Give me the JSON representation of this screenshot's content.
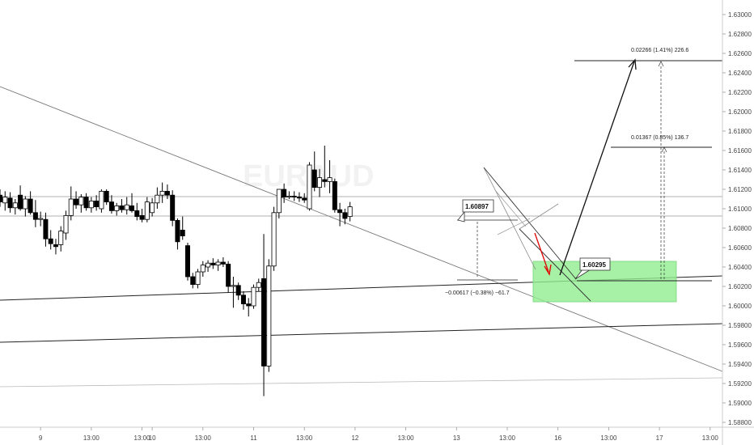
{
  "chart_data": {
    "type": "candlestick",
    "title": "",
    "watermark": "EURAUD",
    "ylim": [
      1.5875,
      1.6315
    ],
    "y_ticks": [
      "1.63000",
      "1.62800",
      "1.62600",
      "1.62400",
      "1.62200",
      "1.62000",
      "1.61800",
      "1.61600",
      "1.61400",
      "1.61200",
      "1.61000",
      "1.60800",
      "1.60600",
      "1.60400",
      "1.60200",
      "1.60000",
      "1.59800",
      "1.59600",
      "1.59400",
      "1.59200",
      "1.59000",
      "1.58800"
    ],
    "x_ticks": [
      "9",
      "13:00",
      "13:00",
      "10",
      "13:00",
      "11",
      "13:00",
      "12",
      "13:00",
      "13",
      "13:00",
      "16",
      "13:00",
      "17",
      "13:00"
    ],
    "x_tick_index": [
      8,
      18,
      28,
      30,
      40,
      50,
      60,
      70,
      80,
      90,
      100,
      110,
      120,
      130,
      140
    ],
    "candles": [
      {
        "o": 1.6114,
        "h": 1.612,
        "l": 1.6102,
        "c": 1.6107
      },
      {
        "o": 1.6106,
        "h": 1.6118,
        "l": 1.6098,
        "c": 1.6112
      },
      {
        "o": 1.6111,
        "h": 1.6117,
        "l": 1.6096,
        "c": 1.6101
      },
      {
        "o": 1.6101,
        "h": 1.611,
        "l": 1.6094,
        "c": 1.6106
      },
      {
        "o": 1.6114,
        "h": 1.6124,
        "l": 1.6098,
        "c": 1.61
      },
      {
        "o": 1.61,
        "h": 1.6113,
        "l": 1.6092,
        "c": 1.611
      },
      {
        "o": 1.611,
        "h": 1.6118,
        "l": 1.6094,
        "c": 1.6096
      },
      {
        "o": 1.6096,
        "h": 1.6109,
        "l": 1.6081,
        "c": 1.6089
      },
      {
        "o": 1.6089,
        "h": 1.6097,
        "l": 1.6082,
        "c": 1.609
      },
      {
        "o": 1.6089,
        "h": 1.6096,
        "l": 1.6061,
        "c": 1.6069
      },
      {
        "o": 1.6069,
        "h": 1.6078,
        "l": 1.6058,
        "c": 1.6064
      },
      {
        "o": 1.6063,
        "h": 1.6069,
        "l": 1.6053,
        "c": 1.6061
      },
      {
        "o": 1.6063,
        "h": 1.6082,
        "l": 1.6056,
        "c": 1.6077
      },
      {
        "o": 1.6075,
        "h": 1.6098,
        "l": 1.6068,
        "c": 1.6093
      },
      {
        "o": 1.6093,
        "h": 1.6123,
        "l": 1.6088,
        "c": 1.611
      },
      {
        "o": 1.611,
        "h": 1.6118,
        "l": 1.61,
        "c": 1.6104
      },
      {
        "o": 1.6104,
        "h": 1.6115,
        "l": 1.6096,
        "c": 1.6112
      },
      {
        "o": 1.6112,
        "h": 1.6116,
        "l": 1.6098,
        "c": 1.6101
      },
      {
        "o": 1.6101,
        "h": 1.6112,
        "l": 1.6096,
        "c": 1.6108
      },
      {
        "o": 1.6108,
        "h": 1.6114,
        "l": 1.6098,
        "c": 1.6102
      },
      {
        "o": 1.61,
        "h": 1.612,
        "l": 1.6096,
        "c": 1.6118
      },
      {
        "o": 1.6118,
        "h": 1.612,
        "l": 1.6104,
        "c": 1.6107
      },
      {
        "o": 1.6107,
        "h": 1.6114,
        "l": 1.6095,
        "c": 1.6098
      },
      {
        "o": 1.6098,
        "h": 1.6106,
        "l": 1.6093,
        "c": 1.6103
      },
      {
        "o": 1.6103,
        "h": 1.611,
        "l": 1.6096,
        "c": 1.6099
      },
      {
        "o": 1.6099,
        "h": 1.6112,
        "l": 1.6094,
        "c": 1.6104
      },
      {
        "o": 1.6103,
        "h": 1.6116,
        "l": 1.6096,
        "c": 1.6098
      },
      {
        "o": 1.6098,
        "h": 1.6106,
        "l": 1.6088,
        "c": 1.6092
      },
      {
        "o": 1.6093,
        "h": 1.61,
        "l": 1.6086,
        "c": 1.6089
      },
      {
        "o": 1.6089,
        "h": 1.6112,
        "l": 1.6086,
        "c": 1.6107
      },
      {
        "o": 1.6096,
        "h": 1.6111,
        "l": 1.6092,
        "c": 1.6106
      },
      {
        "o": 1.6106,
        "h": 1.6122,
        "l": 1.61,
        "c": 1.6114
      },
      {
        "o": 1.6114,
        "h": 1.6127,
        "l": 1.6106,
        "c": 1.6118
      },
      {
        "o": 1.6118,
        "h": 1.6125,
        "l": 1.611,
        "c": 1.6114
      },
      {
        "o": 1.6114,
        "h": 1.6119,
        "l": 1.6082,
        "c": 1.6088
      },
      {
        "o": 1.6088,
        "h": 1.609,
        "l": 1.6058,
        "c": 1.6066
      },
      {
        "o": 1.6078,
        "h": 1.6092,
        "l": 1.6068,
        "c": 1.6072
      },
      {
        "o": 1.6062,
        "h": 1.6065,
        "l": 1.6026,
        "c": 1.603
      },
      {
        "o": 1.603,
        "h": 1.6034,
        "l": 1.6018,
        "c": 1.6022
      },
      {
        "o": 1.6022,
        "h": 1.6038,
        "l": 1.6018,
        "c": 1.6035
      },
      {
        "o": 1.6035,
        "h": 1.6046,
        "l": 1.603,
        "c": 1.6042
      },
      {
        "o": 1.604,
        "h": 1.6047,
        "l": 1.6035,
        "c": 1.6044
      },
      {
        "o": 1.6044,
        "h": 1.6049,
        "l": 1.6038,
        "c": 1.6042
      },
      {
        "o": 1.6042,
        "h": 1.6048,
        "l": 1.6036,
        "c": 1.6045
      },
      {
        "o": 1.6045,
        "h": 1.605,
        "l": 1.604,
        "c": 1.6043
      },
      {
        "o": 1.6043,
        "h": 1.6046,
        "l": 1.6014,
        "c": 1.602
      },
      {
        "o": 1.602,
        "h": 1.603,
        "l": 1.5998,
        "c": 1.6021
      },
      {
        "o": 1.6021,
        "h": 1.6024,
        "l": 1.6006,
        "c": 1.6011
      },
      {
        "o": 1.6011,
        "h": 1.6015,
        "l": 1.5996,
        "c": 1.6002
      },
      {
        "o": 1.6002,
        "h": 1.6008,
        "l": 1.5989,
        "c": 1.6
      },
      {
        "o": 1.6,
        "h": 1.6022,
        "l": 1.5997,
        "c": 1.6019
      },
      {
        "o": 1.6019,
        "h": 1.6028,
        "l": 1.6015,
        "c": 1.6024
      },
      {
        "o": 1.6028,
        "h": 1.6074,
        "l": 1.5907,
        "c": 1.5938
      },
      {
        "o": 1.5938,
        "h": 1.6048,
        "l": 1.5932,
        "c": 1.6041
      },
      {
        "o": 1.6041,
        "h": 1.6102,
        "l": 1.6036,
        "c": 1.6096
      },
      {
        "o": 1.6096,
        "h": 1.612,
        "l": 1.609,
        "c": 1.612
      },
      {
        "o": 1.612,
        "h": 1.6126,
        "l": 1.6106,
        "c": 1.6112
      },
      {
        "o": 1.6112,
        "h": 1.6118,
        "l": 1.611,
        "c": 1.6113
      },
      {
        "o": 1.6113,
        "h": 1.6118,
        "l": 1.6108,
        "c": 1.6112
      },
      {
        "o": 1.6112,
        "h": 1.6117,
        "l": 1.6107,
        "c": 1.6111
      },
      {
        "o": 1.6111,
        "h": 1.6116,
        "l": 1.6106,
        "c": 1.6109
      },
      {
        "o": 1.61,
        "h": 1.6148,
        "l": 1.6098,
        "c": 1.6145
      },
      {
        "o": 1.614,
        "h": 1.6159,
        "l": 1.6118,
        "c": 1.6122
      },
      {
        "o": 1.6122,
        "h": 1.6141,
        "l": 1.6112,
        "c": 1.6132
      },
      {
        "o": 1.613,
        "h": 1.6165,
        "l": 1.6122,
        "c": 1.6128
      },
      {
        "o": 1.6128,
        "h": 1.615,
        "l": 1.6116,
        "c": 1.6132
      },
      {
        "o": 1.6128,
        "h": 1.6131,
        "l": 1.6096,
        "c": 1.6099
      },
      {
        "o": 1.6099,
        "h": 1.6106,
        "l": 1.6082,
        "c": 1.6096
      },
      {
        "o": 1.6096,
        "h": 1.61,
        "l": 1.6084,
        "c": 1.609
      },
      {
        "o": 1.6092,
        "h": 1.6107,
        "l": 1.6087,
        "c": 1.6102
      }
    ],
    "annotations": {
      "label_1": "1.60897",
      "label_2": "1.60295",
      "measure_down": "−0.00617 (−0.38%) −61.7",
      "measure_up_1": "0.01367 (0.85%) 136.7",
      "measure_up_2": "0.02266 (1.41%) 226.6"
    },
    "zone_color": "#90ee90",
    "arrow_color": "#e00000",
    "grid": false
  }
}
